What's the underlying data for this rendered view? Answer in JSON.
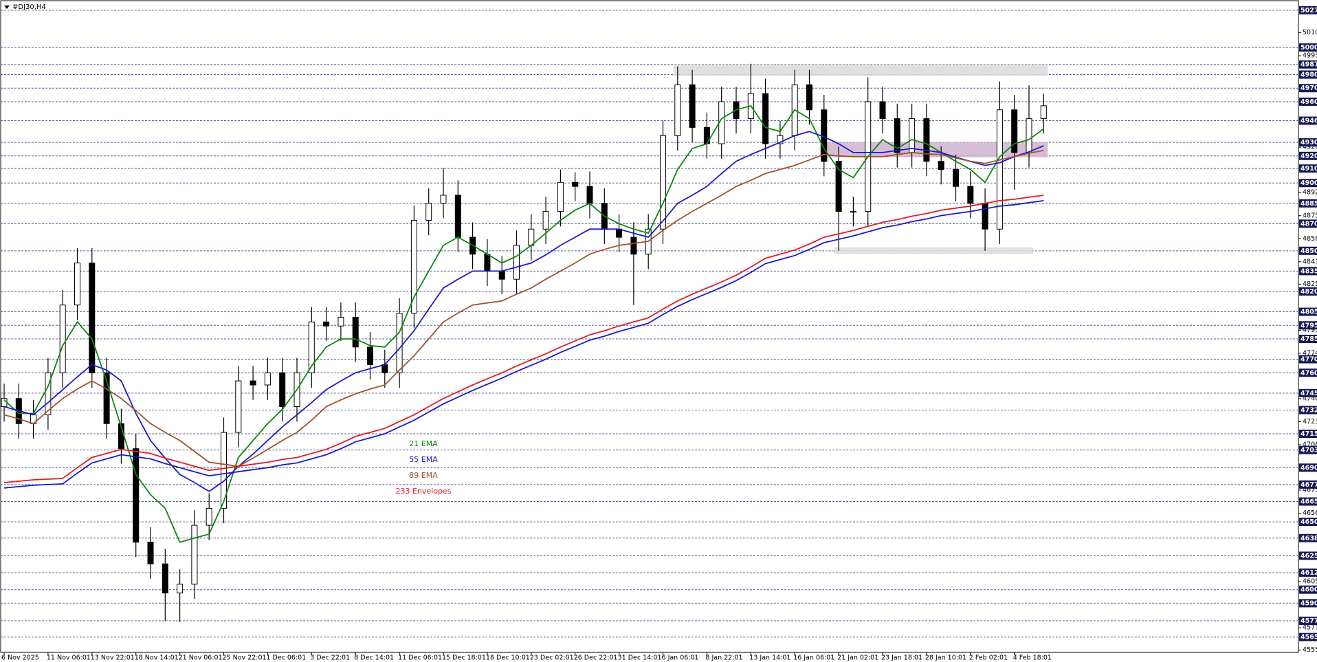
{
  "chart_data": {
    "type": "candlestick",
    "title": "#DJ30,H4",
    "ylim": [
      45537,
      50325
    ],
    "yticks": [
      50109,
      49939,
      49264,
      48929,
      48759,
      48589,
      48419,
      48254,
      47914,
      47744,
      47409,
      47239,
      47069,
      46734,
      46564,
      46059,
      45719,
      45554
    ],
    "levels": [
      50275,
      50000,
      49875,
      49800,
      49700,
      49600,
      49460,
      49300,
      49200,
      49107,
      49000,
      48850,
      48700,
      48500,
      48350,
      48200,
      48050,
      47950,
      47850,
      47700,
      47600,
      47450,
      47325,
      47150,
      47030,
      46900,
      46775,
      46650,
      46500,
      46380,
      46250,
      46125,
      46000,
      45900,
      45770,
      45650
    ],
    "categories": [
      "6 Nov 2025",
      null,
      null,
      "11 Nov 06:01",
      null,
      null,
      "13 Nov 22:01",
      null,
      null,
      "18 Nov 14:01",
      null,
      null,
      "21 Nov 06:01",
      null,
      null,
      "25 Nov 22:01",
      null,
      null,
      "1 Dec 06:01",
      null,
      null,
      "3 Dec 22:01",
      null,
      null,
      "8 Dec 14:01",
      null,
      null,
      "11 Dec 06:01",
      null,
      null,
      "15 Dec 18:01",
      null,
      null,
      "18 Dec 10:01",
      null,
      null,
      "23 Dec 02:01",
      null,
      null,
      "26 Dec 22:01",
      null,
      null,
      "31 Dec 14:01",
      null,
      null,
      "6 Jan 06:01",
      null,
      null,
      "8 Jan 22:01",
      null,
      null,
      "13 Jan 14:01",
      null,
      null,
      "16 Jan 06:01",
      null,
      null,
      "21 Jan 02:01",
      null,
      null,
      "23 Jan 18:01",
      null,
      null,
      "28 Jan 10:01",
      null,
      null,
      "2 Feb 02:01",
      null,
      null,
      "4 Feb 18:01",
      null,
      null
    ],
    "open": [
      47350,
      47410,
      47225,
      47290,
      47600,
      48100,
      48410,
      47600,
      47225,
      47040,
      46350,
      46190,
      45975,
      46040,
      46475,
      46600,
      47160,
      47540,
      47510,
      47600,
      47350,
      47600,
      47975,
      47945,
      48010,
      47790,
      47660,
      47600,
      48040,
      48725,
      48850,
      48910,
      48600,
      48475,
      48350,
      48290,
      48540,
      48660,
      48790,
      49005,
      48975,
      48850,
      48660,
      48600,
      48475,
      48660,
      49350,
      49725,
      49410,
      49290,
      49600,
      49475,
      49660,
      49290,
      49350,
      49725,
      49540,
      49160,
      48790,
      48790,
      49600,
      49475,
      49225,
      49475,
      49160,
      49100,
      48975,
      48850,
      48660,
      49540,
      49225,
      49475
    ],
    "high": [
      47520,
      47520,
      47400,
      47710,
      48210,
      48520,
      48520,
      47710,
      47335,
      47150,
      46460,
      46300,
      46150,
      46585,
      46710,
      47270,
      47650,
      47650,
      47710,
      47710,
      47710,
      48085,
      48085,
      48120,
      48120,
      47900,
      47770,
      48150,
      48835,
      48960,
      49110,
      49020,
      48710,
      48585,
      48460,
      48650,
      48770,
      48900,
      49100,
      49080,
      49085,
      48960,
      48770,
      48710,
      48770,
      49460,
      49860,
      49835,
      49520,
      49710,
      49710,
      49880,
      49770,
      49460,
      49835,
      49835,
      49650,
      49270,
      48900,
      49780,
      49710,
      49585,
      49585,
      49585,
      49270,
      49210,
      49085,
      48960,
      49750,
      49650,
      49720,
      49660
    ],
    "low": [
      47240,
      47115,
      47115,
      47180,
      47490,
      47990,
      47490,
      47115,
      46930,
      46240,
      46080,
      45770,
      45760,
      45930,
      46365,
      46490,
      47050,
      47400,
      47400,
      47240,
      47240,
      47490,
      47835,
      47835,
      47680,
      47550,
      47490,
      47490,
      47930,
      48615,
      48740,
      48490,
      48365,
      48240,
      48180,
      48180,
      48430,
      48550,
      48680,
      48865,
      48740,
      48550,
      48490,
      48100,
      48365,
      48550,
      49240,
      49300,
      49180,
      49180,
      49365,
      49365,
      49180,
      49180,
      49240,
      49430,
      49050,
      48500,
      48680,
      48680,
      49365,
      49115,
      49115,
      49050,
      48990,
      48865,
      48740,
      48500,
      48550,
      48950,
      49115,
      49365
    ],
    "close": [
      47410,
      47225,
      47290,
      47600,
      48100,
      48410,
      47600,
      47225,
      47040,
      46350,
      46190,
      45975,
      46040,
      46475,
      46600,
      47160,
      47540,
      47510,
      47600,
      47350,
      47600,
      47975,
      47945,
      48010,
      47790,
      47660,
      47600,
      48040,
      48725,
      48850,
      48910,
      48600,
      48475,
      48350,
      48290,
      48540,
      48660,
      48790,
      49005,
      48975,
      48850,
      48660,
      48600,
      48475,
      48660,
      49350,
      49725,
      49410,
      49290,
      49600,
      49475,
      49660,
      49290,
      49350,
      49725,
      49540,
      49160,
      48790,
      48790,
      49600,
      49475,
      49225,
      49475,
      49160,
      49100,
      48975,
      48850,
      48660,
      49540,
      49225,
      49475,
      49570
    ],
    "series": [
      {
        "name": "21 EMA",
        "color": "#0b870b",
        "values": [
          47400,
          47300,
          47300,
          47500,
          47800,
          47975,
          47850,
          47540,
          47200,
          46850,
          46700,
          46600,
          46350,
          46380,
          46410,
          46650,
          46975,
          47100,
          47225,
          47330,
          47475,
          47650,
          47790,
          47850,
          47850,
          47800,
          47790,
          47900,
          48160,
          48350,
          48540,
          48600,
          48540,
          48475,
          48410,
          48460,
          48540,
          48630,
          48725,
          48800,
          48850,
          48755,
          48700,
          48660,
          48630,
          48850,
          49100,
          49255,
          49290,
          49475,
          49540,
          49570,
          49410,
          49380,
          49540,
          49475,
          49255,
          49100,
          49040,
          49195,
          49320,
          49255,
          49320,
          49290,
          49225,
          49160,
          49100,
          49005,
          49195,
          49290,
          49320,
          49400
        ]
      },
      {
        "name": "55 EMA",
        "color": "#1a1acd",
        "values": [
          47350,
          47320,
          47290,
          47380,
          47475,
          47570,
          47660,
          47620,
          47540,
          47300,
          47100,
          46970,
          46850,
          46790,
          46725,
          46800,
          46910,
          47000,
          47100,
          47200,
          47290,
          47380,
          47475,
          47540,
          47600,
          47630,
          47660,
          47780,
          47910,
          48070,
          48225,
          48290,
          48350,
          48350,
          48350,
          48380,
          48410,
          48470,
          48540,
          48600,
          48660,
          48660,
          48660,
          48630,
          48600,
          48720,
          48850,
          48910,
          48975,
          49070,
          49160,
          49210,
          49255,
          49300,
          49350,
          49380,
          49340,
          49290,
          49225,
          49225,
          49225,
          49240,
          49255,
          49240,
          49225,
          49190,
          49160,
          49130,
          49150,
          49195,
          49230,
          49275
        ]
      },
      {
        "name": "89 EMA",
        "color": "#a0522d",
        "values": [
          47290,
          47260,
          47225,
          47320,
          47410,
          47480,
          47540,
          47480,
          47410,
          47320,
          47225,
          47160,
          47100,
          47020,
          46940,
          46925,
          46910,
          46970,
          47035,
          47100,
          47160,
          47250,
          47350,
          47400,
          47445,
          47480,
          47510,
          47620,
          47725,
          47850,
          47975,
          48040,
          48100,
          48115,
          48130,
          48180,
          48225,
          48290,
          48350,
          48410,
          48475,
          48510,
          48540,
          48555,
          48570,
          48650,
          48725,
          48790,
          48850,
          48910,
          48975,
          49020,
          49070,
          49100,
          49130,
          49170,
          49210,
          49200,
          49195,
          49195,
          49195,
          49210,
          49225,
          49215,
          49210,
          49185,
          49160,
          49145,
          49170,
          49195,
          49220,
          49240
        ]
      },
      {
        "name": "233 Envelopes",
        "color": "#e31a2a",
        "lower_color": "#1a1acd",
        "values": [
          46790,
          46800,
          46810,
          46815,
          46820,
          46900,
          46975,
          47005,
          47035,
          47020,
          47005,
          46970,
          46940,
          46910,
          46880,
          46895,
          46910,
          46925,
          46940,
          46960,
          46975,
          47005,
          47035,
          47080,
          47130,
          47160,
          47190,
          47240,
          47290,
          47350,
          47410,
          47460,
          47510,
          47555,
          47600,
          47650,
          47695,
          47740,
          47790,
          47835,
          47880,
          47910,
          47945,
          47975,
          48005,
          48070,
          48130,
          48180,
          48225,
          48270,
          48320,
          48380,
          48445,
          48475,
          48505,
          48550,
          48600,
          48625,
          48650,
          48680,
          48710,
          48730,
          48755,
          48775,
          48800,
          48815,
          48830,
          48850,
          48870,
          48880,
          48895,
          48910
        ],
        "lower": [
          46750,
          46760,
          46770,
          46775,
          46780,
          46860,
          46935,
          46965,
          46995,
          46980,
          46965,
          46930,
          46900,
          46870,
          46840,
          46855,
          46870,
          46885,
          46900,
          46920,
          46935,
          46965,
          46995,
          47040,
          47090,
          47120,
          47150,
          47200,
          47250,
          47310,
          47370,
          47420,
          47470,
          47515,
          47560,
          47610,
          47655,
          47700,
          47750,
          47795,
          47840,
          47870,
          47905,
          47935,
          47965,
          48030,
          48090,
          48140,
          48185,
          48230,
          48280,
          48340,
          48405,
          48435,
          48465,
          48510,
          48560,
          48585,
          48610,
          48640,
          48670,
          48690,
          48715,
          48735,
          48760,
          48775,
          48790,
          48810,
          48830,
          48840,
          48855,
          48870
        ]
      }
    ],
    "zones": [
      {
        "start": 46,
        "end": 71,
        "low": 49790,
        "high": 49875,
        "color": "#d9d9d9"
      },
      {
        "start": 56,
        "end": 71,
        "low": 49190,
        "high": 49300,
        "color": "#cfb3cf"
      },
      {
        "start": 57,
        "end": 70,
        "low": 48475,
        "high": 48525,
        "color": "#dcdcdc"
      }
    ]
  }
}
